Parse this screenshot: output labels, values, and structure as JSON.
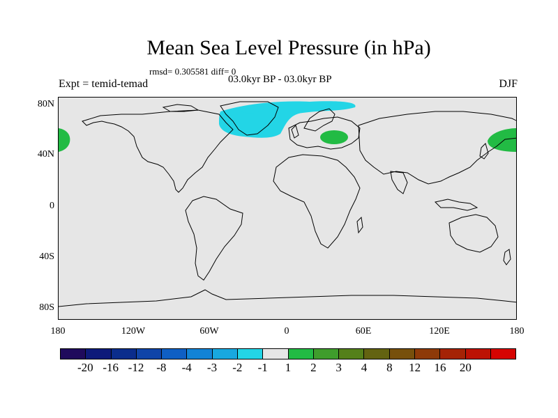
{
  "title": "Mean Sea Level Pressure (in hPa)",
  "subtitle": "rmsd= 0.305581 diff= 0",
  "experiment_label": "Expt = temid-temad",
  "period_label": "03.0kyr BP - 03.0kyr BP",
  "season_label": "DJF",
  "lat_labels": [
    "80N",
    "40N",
    "0",
    "40S",
    "80S"
  ],
  "lon_labels": [
    "180",
    "120W",
    "60W",
    "0",
    "60E",
    "120E",
    "180"
  ],
  "colorbar": {
    "colors": [
      "#1f0a5c",
      "#0e1a7a",
      "#0b2d8c",
      "#1044a8",
      "#0f5fc4",
      "#1283d6",
      "#18a8df",
      "#23d5e6",
      "#e6e6e6",
      "#22bb44",
      "#3f9d2c",
      "#54801a",
      "#636311",
      "#77500c",
      "#8e3a08",
      "#a52305",
      "#bc1204",
      "#d60402"
    ],
    "tick_labels": [
      "-20",
      "-16",
      "-12",
      "-8",
      "-4",
      "-3",
      "-2",
      "-1",
      "1",
      "2",
      "3",
      "4",
      "8",
      "12",
      "16",
      "20"
    ]
  },
  "anomaly_colors": {
    "negative": "#23d5e6",
    "positive": "#22bb44"
  }
}
